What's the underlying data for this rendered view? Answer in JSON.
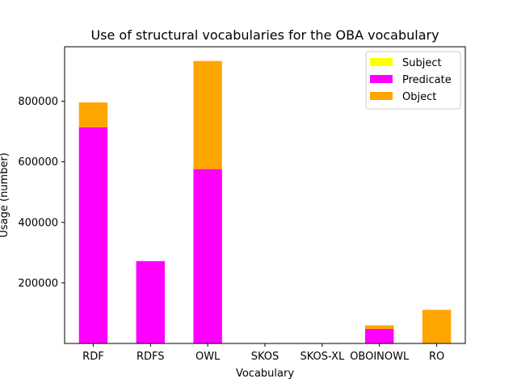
{
  "chart_data": {
    "type": "bar",
    "stacked": true,
    "title": "Use of structural vocabularies for the OBA vocabulary",
    "xlabel": "Vocabulary",
    "ylabel": "Usage (number)",
    "categories": [
      "RDF",
      "RDFS",
      "OWL",
      "SKOS",
      "SKOS-XL",
      "OBOINOWL",
      "RO"
    ],
    "series": [
      {
        "name": "Subject",
        "color": "#ffff00",
        "values": [
          0,
          0,
          0,
          0,
          0,
          0,
          0
        ]
      },
      {
        "name": "Predicate",
        "color": "#ff00ff",
        "values": [
          714000,
          272000,
          576000,
          0,
          0,
          48000,
          0
        ]
      },
      {
        "name": "Object",
        "color": "#ffa500",
        "values": [
          82000,
          0,
          357000,
          0,
          0,
          12000,
          111000
        ]
      }
    ],
    "ylim": [
      0,
      980000
    ],
    "yticks": [
      200000,
      400000,
      600000,
      800000
    ],
    "ytick_labels": [
      "200000",
      "400000",
      "600000",
      "800000"
    ],
    "grid": false,
    "legend_position": "top-right"
  }
}
